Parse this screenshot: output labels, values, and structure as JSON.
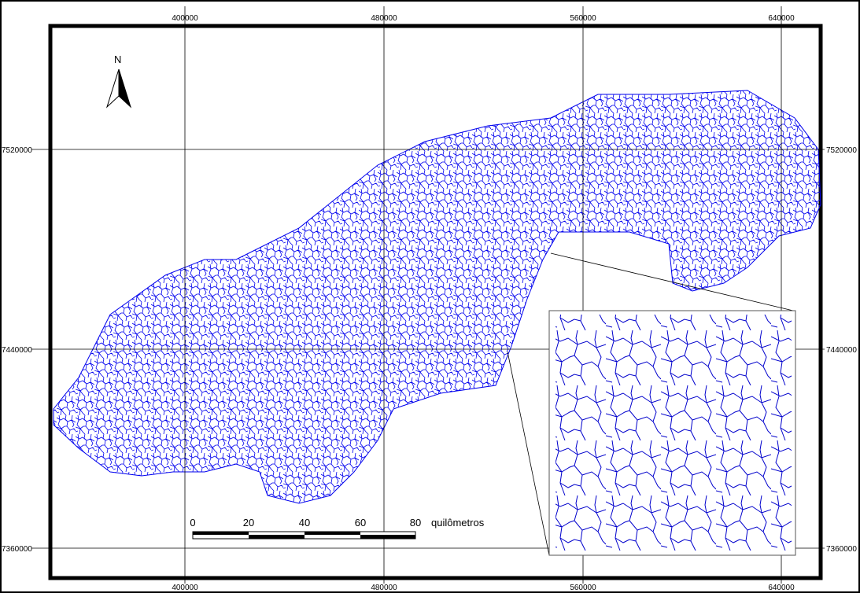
{
  "map": {
    "top_labels": [
      "400000",
      "480000",
      "560000",
      "640000"
    ],
    "bottom_labels": [
      "400000",
      "480000",
      "560000",
      "640000"
    ],
    "left_labels": [
      "7520000",
      "7440000",
      "7360000"
    ],
    "right_labels": [
      "7520000",
      "7440000",
      "7360000"
    ],
    "north": "N",
    "scale_labels": [
      "0",
      "20",
      "40",
      "60",
      "80"
    ],
    "scale_unit": "quilômetros"
  }
}
